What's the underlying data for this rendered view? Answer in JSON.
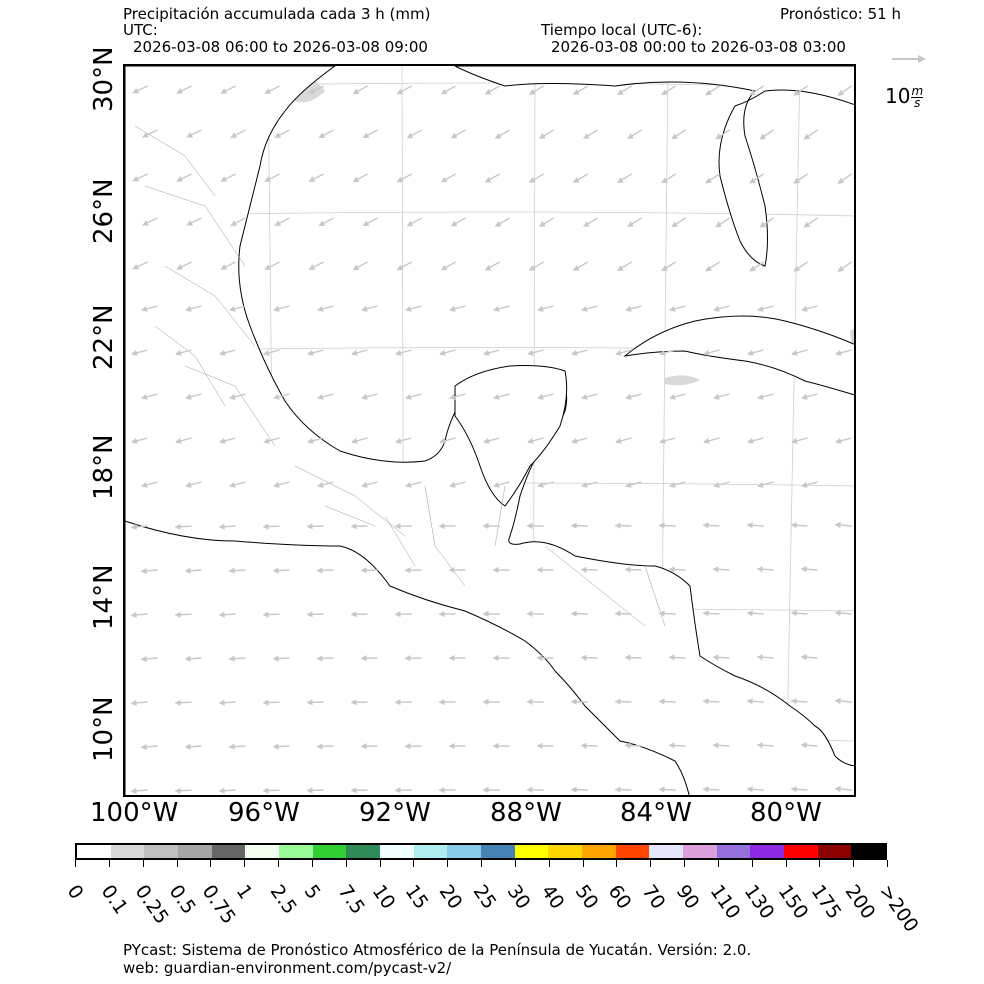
{
  "header": {
    "title": "Precipitación accumulada cada 3 h (mm)",
    "utc_label": "UTC:",
    "utc_range": "2026-03-08 06:00 to 2026-03-08 09:00",
    "forecast": "Pronóstico: 51 h",
    "local_label": "Tiempo local (UTC-6):",
    "local_range": "2026-03-08 00:00 to 2026-03-08 03:00"
  },
  "wind_legend": {
    "label": "10",
    "unit_num": "m",
    "unit_den": "s"
  },
  "map": {
    "lat_labels": [
      "30°N",
      "26°N",
      "22°N",
      "18°N",
      "14°N",
      "10°N"
    ],
    "lon_labels": [
      "100°W",
      "96°W",
      "92°W",
      "88°W",
      "84°W",
      "80°W"
    ],
    "land_color": "#ffffff",
    "coast_color": "#000000",
    "wind_arrow_color": "#c8c8c8"
  },
  "colorbar": {
    "labels": [
      "0",
      "0.1",
      "0.25",
      "0.5",
      "0.75",
      "1",
      "2.5",
      "5",
      "7.5",
      "10",
      "15",
      "20",
      "25",
      "30",
      "40",
      "50",
      "60",
      "70",
      "90",
      "110",
      "130",
      "150",
      "175",
      "200",
      ">200"
    ],
    "colors": [
      "#ffffff",
      "#d9d9d9",
      "#bfbfbf",
      "#a6a6a6",
      "#666666",
      "#f0fff0",
      "#98fb98",
      "#32cd32",
      "#2e8b57",
      "#f0ffff",
      "#afeeee",
      "#87ceeb",
      "#4682b4",
      "#ffff00",
      "#ffd700",
      "#ffa500",
      "#ff4500",
      "#e6e6fa",
      "#dda0dd",
      "#9370db",
      "#8a2be2",
      "#ff0000",
      "#8b0000",
      "#000000"
    ]
  },
  "footer": {
    "line1": "PYcast: Sistema de Pronóstico Atmosférico de la Península de Yucatán. Versión: 2.0.",
    "line2": "web: guardian-environment.com/pycast-v2/"
  }
}
